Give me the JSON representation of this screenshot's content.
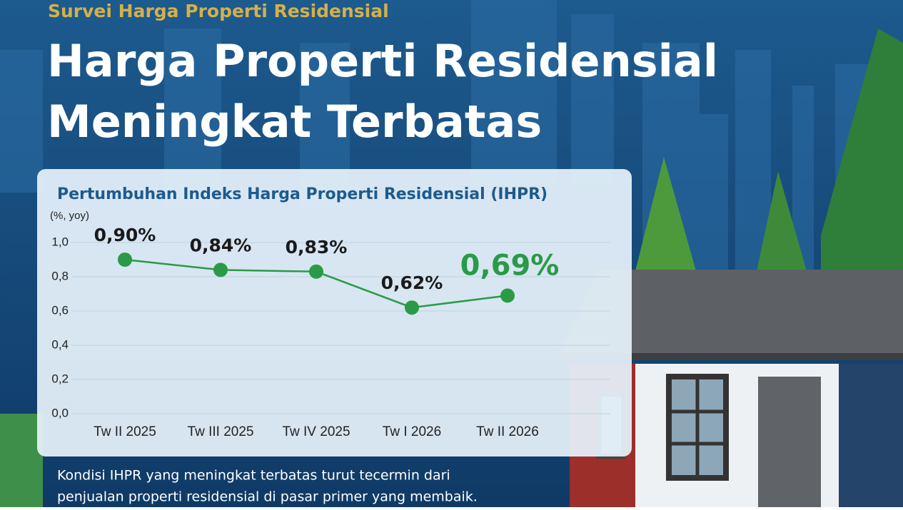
{
  "kicker": "Survei Harga Properti Residensial",
  "headline": [
    "Harga Properti Residensial",
    "Meningkat Terbatas"
  ],
  "chart_data": {
    "type": "line",
    "title": "Pertumbuhan Indeks Harga Properti Residensial (IHPR)",
    "y_label": "(%, yoy)",
    "categories": [
      "Tw II 2025",
      "Tw III 2025",
      "Tw IV 2025",
      "Tw I 2026",
      "Tw II 2026"
    ],
    "values": [
      0.9,
      0.84,
      0.83,
      0.62,
      0.69
    ],
    "value_labels": [
      "0,90%",
      "0,84%",
      "0,83%",
      "0,62%",
      "0,69%"
    ],
    "color": "#2a9a48",
    "ylim": [
      0,
      1.0
    ],
    "yticks": [
      {
        "value": 0,
        "label": "0,0"
      },
      {
        "value": 0.2,
        "label": "0,2"
      },
      {
        "value": 0.4,
        "label": "0,4"
      },
      {
        "value": 0.6,
        "label": "0,6"
      },
      {
        "value": 0.8,
        "label": "0,8"
      },
      {
        "value": 1.0,
        "label": "1,0"
      }
    ],
    "grid": true
  },
  "footer": [
    "Kondisi IHPR yang meningkat terbatas turut tecermin dari",
    "penjualan properti residensial di pasar primer yang membaik."
  ]
}
